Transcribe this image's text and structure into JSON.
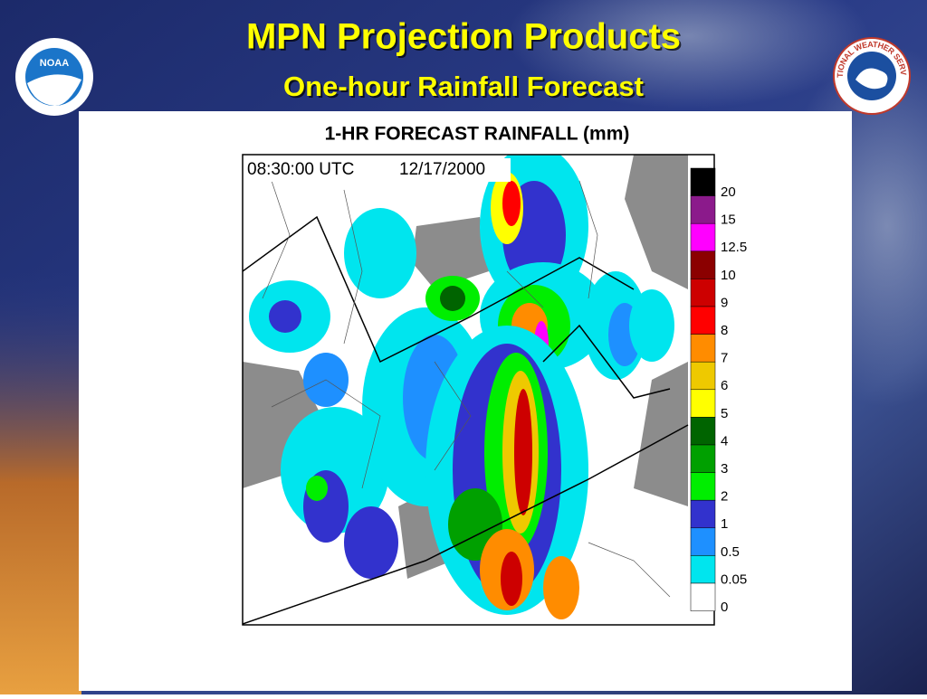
{
  "header": {
    "title": "MPN Projection Products",
    "subtitle": "One-hour Rainfall Forecast"
  },
  "logos": {
    "left": "NOAA",
    "right": "NATIONAL WEATHER SERVICE"
  },
  "map": {
    "title": "1-HR FORECAST RAINFALL (mm)",
    "time": "08:30:00 UTC",
    "date": "12/17/2000",
    "legend": [
      {
        "label": "20",
        "color": "#000000"
      },
      {
        "label": "15",
        "color": "#8b1a8b"
      },
      {
        "label": "12.5",
        "color": "#ff00ff"
      },
      {
        "label": "10",
        "color": "#8b0000"
      },
      {
        "label": "9",
        "color": "#cd0000"
      },
      {
        "label": "8",
        "color": "#ff0000"
      },
      {
        "label": "7",
        "color": "#ff8c00"
      },
      {
        "label": "6",
        "color": "#eec900"
      },
      {
        "label": "5",
        "color": "#ffff00"
      },
      {
        "label": "4",
        "color": "#006400"
      },
      {
        "label": "3",
        "color": "#00a000"
      },
      {
        "label": "2",
        "color": "#00ee00"
      },
      {
        "label": "1",
        "color": "#3232cd"
      },
      {
        "label": "0.5",
        "color": "#1e90ff"
      },
      {
        "label": "0.05",
        "color": "#00e5ee"
      },
      {
        "label": "0",
        "color": "#ffffff"
      }
    ]
  }
}
